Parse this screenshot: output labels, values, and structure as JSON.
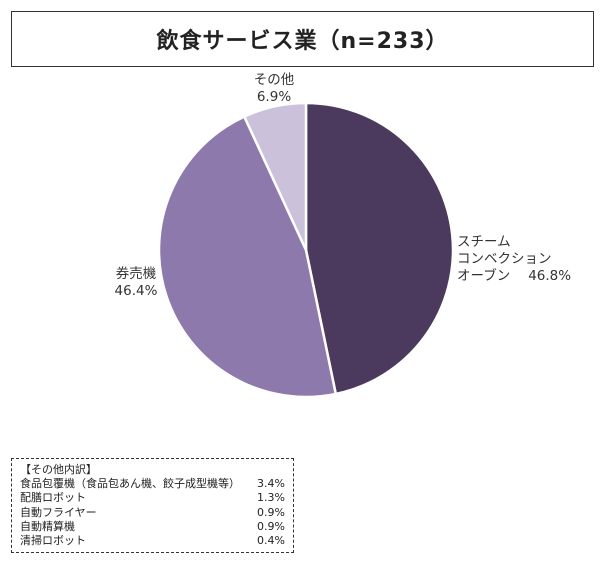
{
  "title": "飲食サービス業（n=233）",
  "chart_data": {
    "type": "pie",
    "slices": [
      {
        "label_lines": [
          "スチーム",
          "コンベクション",
          "オーブン"
        ],
        "value": 46.8,
        "value_label": "46.8%",
        "color": "#4b3a5e"
      },
      {
        "label_lines": [
          "券売機"
        ],
        "value": 46.4,
        "value_label": "46.4%",
        "color": "#8e79ad"
      },
      {
        "label_lines": [
          "その他"
        ],
        "value": 6.9,
        "value_label": "6.9%",
        "color": "#cbc1db"
      }
    ],
    "start_angle": "12 o'clock",
    "direction": "clockwise",
    "legend": "none"
  },
  "breakdown": {
    "title": "【その他内訳】",
    "items": [
      {
        "label": "食品包覆機（食品包あん機、餃子成型機等）",
        "value": "3.4%"
      },
      {
        "label": "配膳ロボット",
        "value": "1.3%"
      },
      {
        "label": "自動フライヤー",
        "value": "0.9%"
      },
      {
        "label": "自動精算機",
        "value": "0.9%"
      },
      {
        "label": "清掃ロボット",
        "value": "0.4%"
      }
    ]
  }
}
